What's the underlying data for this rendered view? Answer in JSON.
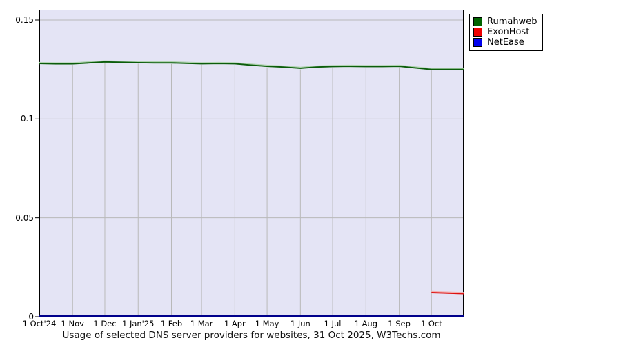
{
  "page": {
    "caption": "Usage of selected DNS server providers for websites, 31 Oct 2025, W3Techs.com"
  },
  "colors": {
    "plot_bg": "#e4e4f5",
    "grid": "#b9b9b9",
    "axis": "#000000",
    "baseline": "#00008b"
  },
  "legend": {
    "items": [
      {
        "label": "Rumahweb",
        "swatch_color": "#006400"
      },
      {
        "label": "ExonHost",
        "swatch_color": "#ee0000"
      },
      {
        "label": "NetEase",
        "swatch_color": "#0000ee"
      }
    ]
  },
  "chart_data": {
    "type": "line",
    "title": "Usage of selected DNS server providers for websites, 31 Oct 2025, W3Techs.com",
    "xlabel": "",
    "ylabel": "",
    "x_axis": {
      "start_date": "1 Oct 2024",
      "end_date": "31 Oct 2025",
      "range_days": [
        0,
        395
      ],
      "tick_days": [
        0,
        31,
        61,
        92,
        123,
        151,
        182,
        212,
        243,
        273,
        304,
        335,
        365
      ],
      "tick_labels": [
        "1 Oct'24",
        "1 Nov",
        "1 Dec",
        "1 Jan'25",
        "1 Feb",
        "1 Mar",
        "1 Apr",
        "1 May",
        "1 Jun",
        "1 Jul",
        "1 Aug",
        "1 Sep",
        "1 Oct"
      ]
    },
    "y_axis": {
      "range": [
        0,
        0.155
      ],
      "ticks": [
        0,
        0.05,
        0.1,
        0.15
      ],
      "tick_labels": [
        "0",
        "0.05",
        "0.1",
        "0.15"
      ]
    },
    "grid": true,
    "legend_position": "outside-top-right",
    "series": [
      {
        "name": "Rumahweb",
        "color": "#0b5c0b",
        "halo_color": "#aed2ae",
        "points": [
          [
            0,
            0.128
          ],
          [
            15,
            0.1278
          ],
          [
            31,
            0.1278
          ],
          [
            46,
            0.1283
          ],
          [
            61,
            0.1288
          ],
          [
            76,
            0.1286
          ],
          [
            92,
            0.1284
          ],
          [
            107,
            0.1283
          ],
          [
            123,
            0.1283
          ],
          [
            137,
            0.1281
          ],
          [
            151,
            0.1279
          ],
          [
            167,
            0.128
          ],
          [
            182,
            0.1279
          ],
          [
            197,
            0.1272
          ],
          [
            212,
            0.1266
          ],
          [
            227,
            0.1262
          ],
          [
            243,
            0.1256
          ],
          [
            258,
            0.1262
          ],
          [
            273,
            0.1265
          ],
          [
            288,
            0.1266
          ],
          [
            304,
            0.1265
          ],
          [
            319,
            0.1265
          ],
          [
            335,
            0.1266
          ],
          [
            350,
            0.1258
          ],
          [
            365,
            0.125
          ],
          [
            380,
            0.125
          ],
          [
            395,
            0.125
          ]
        ]
      },
      {
        "name": "ExonHost",
        "color": "#dd1111",
        "halo_color": "#f2b0b0",
        "points": [
          [
            365,
            0.0122
          ],
          [
            395,
            0.0117
          ]
        ]
      },
      {
        "name": "NetEase",
        "color": "#00008b",
        "halo_color": null,
        "points": [
          [
            0,
            0.0
          ],
          [
            395,
            0.0
          ]
        ]
      }
    ]
  }
}
